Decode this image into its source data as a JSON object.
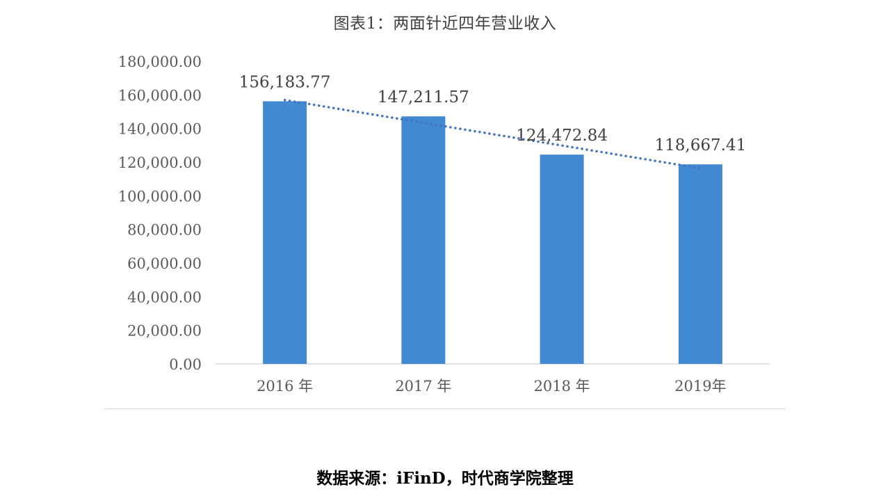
{
  "chart_data": {
    "type": "bar",
    "title": "图表1：两面针近四年营业收入",
    "categories": [
      "2016 年",
      "2017 年",
      "2018 年",
      "2019年"
    ],
    "values": [
      156183.77,
      147211.57,
      124472.84,
      118667.41
    ],
    "data_labels": [
      "156,183.77",
      "147,211.57",
      "124,472.84",
      "118,667.41"
    ],
    "ylim": [
      0,
      180000
    ],
    "yticks": [
      0,
      20000,
      40000,
      60000,
      80000,
      100000,
      120000,
      140000,
      160000,
      180000
    ],
    "ytick_labels": [
      "0.00",
      "20,000.00",
      "40,000.00",
      "60,000.00",
      "80,000.00",
      "100,000.00",
      "120,000.00",
      "140,000.00",
      "160,000.00",
      "180,000.00"
    ],
    "xlabel": "",
    "ylabel": "",
    "grid": false,
    "trendline": "linear dotted",
    "colors": {
      "bar": "#4189d0",
      "trendline": "#4472c4",
      "axis": "#d9d9d9"
    }
  },
  "footer": {
    "source": "数据来源：iFinD，时代商学院整理"
  }
}
